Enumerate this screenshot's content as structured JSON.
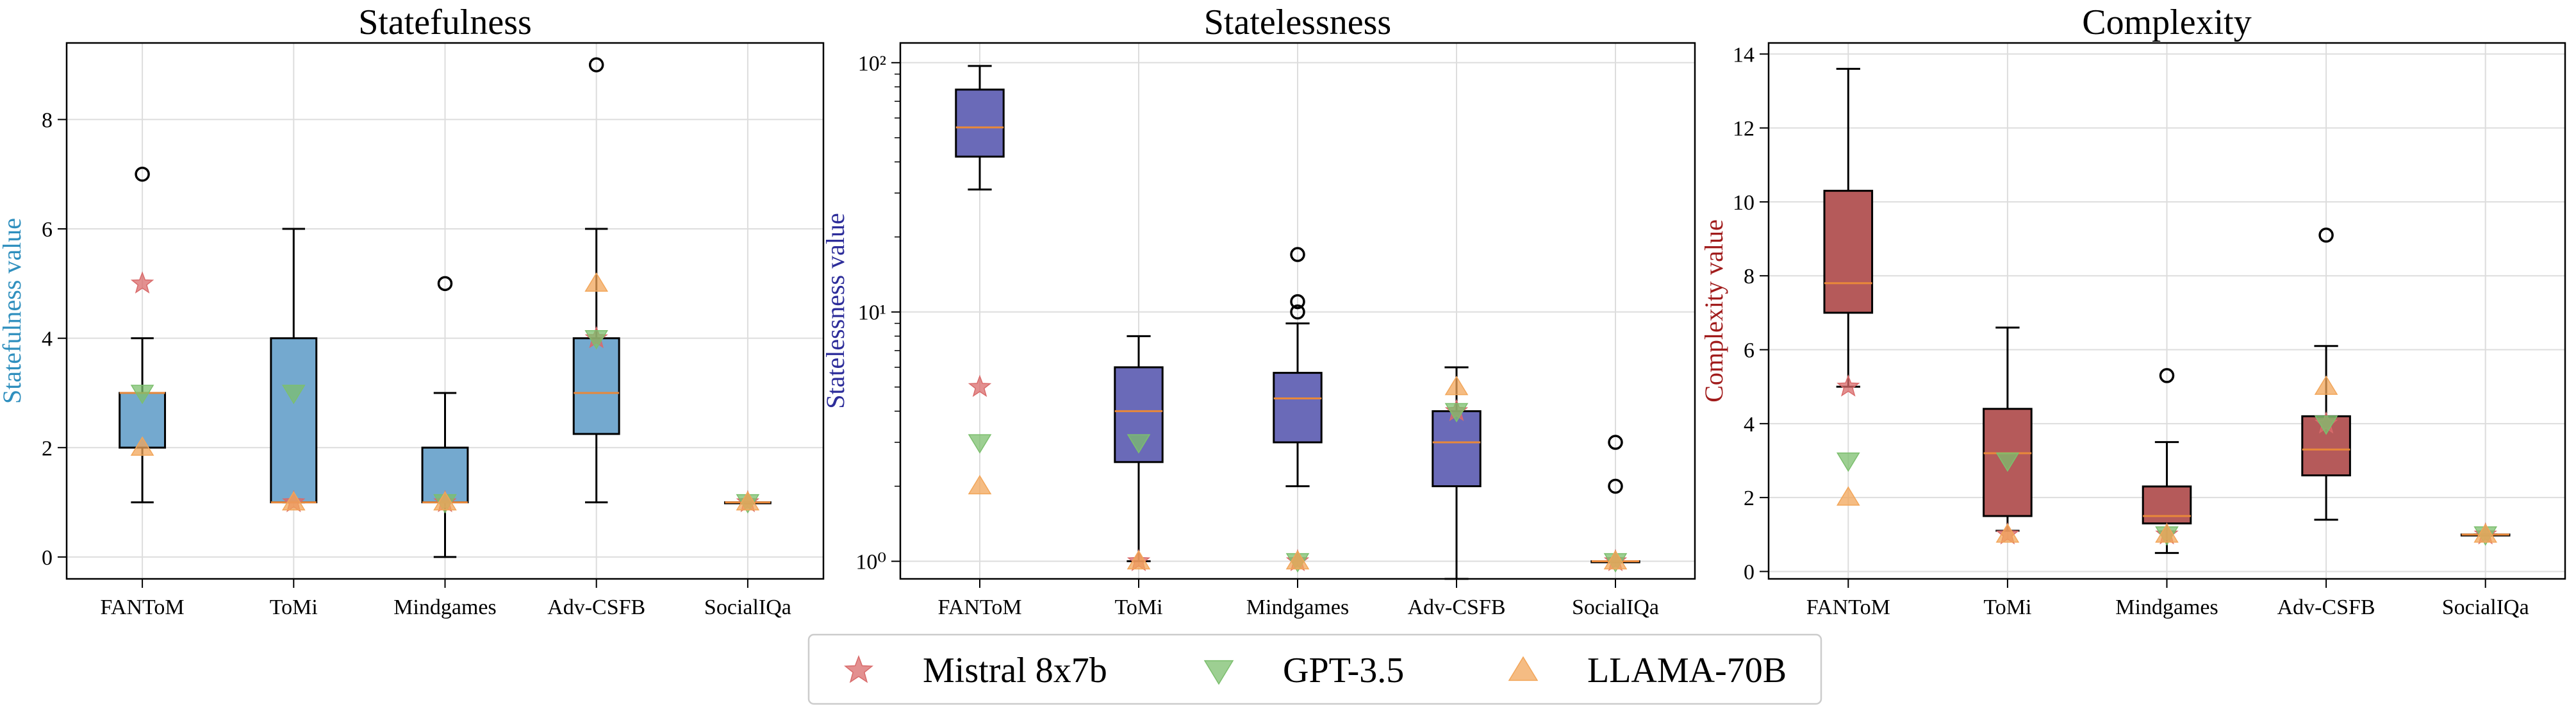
{
  "chart_data": [
    {
      "type": "box",
      "title": "Statefulness",
      "ylabel": "Statefulness value",
      "ylabel_color": "#2f8fbe",
      "box_color": "#74a9cf",
      "yscale": "linear",
      "ylim": [
        -0.4,
        9.4
      ],
      "yticks": [
        0,
        2,
        4,
        6,
        8
      ],
      "ytick_labels": [
        "0",
        "2",
        "4",
        "6",
        "8"
      ],
      "categories": [
        "FANToM",
        "ToMi",
        "Mindgames",
        "Adv-CSFB",
        "SocialIQa"
      ],
      "boxes": [
        {
          "whislo": 1,
          "q1": 2,
          "med": 3,
          "q3": 3,
          "whishi": 4,
          "fliers": [
            7
          ]
        },
        {
          "whislo": 1,
          "q1": 1,
          "med": 1,
          "q3": 4,
          "whishi": 6,
          "fliers": []
        },
        {
          "whislo": 0,
          "q1": 1,
          "med": 1,
          "q3": 2,
          "whishi": 3,
          "fliers": [
            5
          ]
        },
        {
          "whislo": 1,
          "q1": 2.25,
          "med": 3,
          "q3": 4,
          "whishi": 6,
          "fliers": [
            9
          ]
        },
        {
          "whislo": 1,
          "q1": 1,
          "med": 1,
          "q3": 1,
          "whishi": 1,
          "fliers": []
        }
      ],
      "models": {
        "Mistral 8x7b": [
          5,
          1,
          1,
          4,
          1
        ],
        "GPT-3.5": [
          3,
          3,
          1,
          4,
          1
        ],
        "LLAMA-70B": [
          2,
          1,
          1,
          5,
          1
        ]
      }
    },
    {
      "type": "box",
      "title": "Statelessness",
      "ylabel": "Statelessness value",
      "ylabel_color": "#2d2d9a",
      "box_color": "#6a6ab8",
      "yscale": "log",
      "ylim": [
        0.85,
        120
      ],
      "yticks": [
        1,
        10,
        100
      ],
      "ytick_labels": [
        "10⁰",
        "10¹",
        "10²"
      ],
      "categories": [
        "FANToM",
        "ToMi",
        "Mindgames",
        "Adv-CSFB",
        "SocialIQa"
      ],
      "boxes": [
        {
          "whislo": 31,
          "q1": 42,
          "med": 55,
          "q3": 78,
          "whishi": 97,
          "fliers": []
        },
        {
          "whislo": 1,
          "q1": 2.5,
          "med": 4,
          "q3": 6,
          "whishi": 8,
          "fliers": []
        },
        {
          "whislo": 2,
          "q1": 3,
          "med": 4.5,
          "q3": 5.7,
          "whishi": 9,
          "fliers": [
            10,
            11,
            17
          ]
        },
        {
          "whislo": 0.85,
          "q1": 2,
          "med": 3,
          "q3": 4,
          "whishi": 6,
          "fliers": []
        },
        {
          "whislo": 1,
          "q1": 1,
          "med": 1,
          "q3": 1,
          "whishi": 1,
          "fliers": [
            2,
            3
          ]
        }
      ],
      "models": {
        "Mistral 8x7b": [
          5,
          1,
          1,
          4,
          1
        ],
        "GPT-3.5": [
          3,
          3,
          1,
          4,
          1
        ],
        "LLAMA-70B": [
          2,
          1,
          1,
          5,
          1
        ]
      }
    },
    {
      "type": "box",
      "title": "Complexity",
      "ylabel": "Complexity value",
      "ylabel_color": "#a11c1c",
      "box_color": "#b55a5a",
      "yscale": "linear",
      "ylim": [
        -0.2,
        14.3
      ],
      "yticks": [
        0,
        2,
        4,
        6,
        8,
        10,
        12,
        14
      ],
      "ytick_labels": [
        "0",
        "2",
        "4",
        "6",
        "8",
        "10",
        "12",
        "14"
      ],
      "categories": [
        "FANToM",
        "ToMi",
        "Mindgames",
        "Adv-CSFB",
        "SocialIQa"
      ],
      "boxes": [
        {
          "whislo": 5,
          "q1": 7,
          "med": 7.8,
          "q3": 10.3,
          "whishi": 13.6,
          "fliers": []
        },
        {
          "whislo": 1.1,
          "q1": 1.5,
          "med": 3.2,
          "q3": 4.4,
          "whishi": 6.6,
          "fliers": []
        },
        {
          "whislo": 0.5,
          "q1": 1.3,
          "med": 1.5,
          "q3": 2.3,
          "whishi": 3.5,
          "fliers": [
            5.3
          ]
        },
        {
          "whislo": 1.4,
          "q1": 2.6,
          "med": 3.3,
          "q3": 4.2,
          "whishi": 6.1,
          "fliers": [
            9.1
          ]
        },
        {
          "whislo": 1,
          "q1": 1,
          "med": 1,
          "q3": 1,
          "whishi": 1,
          "fliers": []
        }
      ],
      "models": {
        "Mistral 8x7b": [
          5,
          1,
          1,
          4,
          1
        ],
        "GPT-3.5": [
          3,
          3,
          1,
          4,
          1
        ],
        "LLAMA-70B": [
          2,
          1,
          1,
          5,
          1
        ]
      }
    }
  ],
  "legend": {
    "placement": "bottom-center",
    "entries": [
      {
        "label": "Mistral 8x7b",
        "marker": "star",
        "color": "#d96b6b"
      },
      {
        "label": "GPT-3.5",
        "marker": "triangle-down",
        "color": "#7cbf6e"
      },
      {
        "label": "LLAMA-70B",
        "marker": "triangle-up",
        "color": "#f2a65a"
      }
    ]
  },
  "colors": {
    "median": "#e8883a",
    "grid": "#dddddd"
  }
}
